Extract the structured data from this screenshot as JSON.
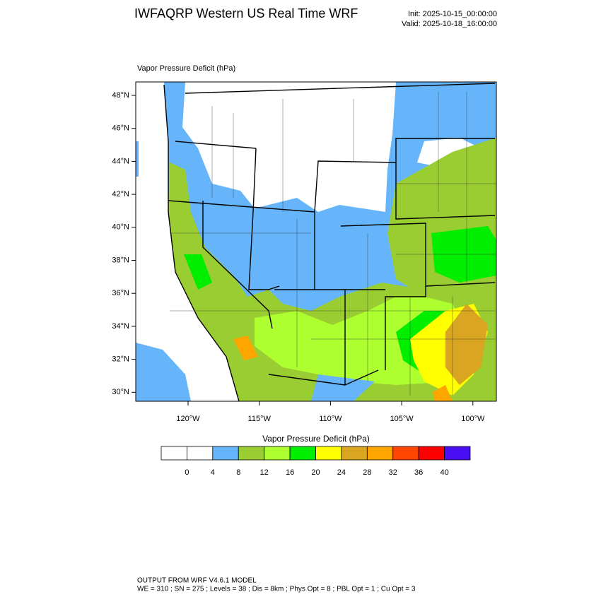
{
  "header": {
    "title": "IWFAQRP Western US Real Time WRF",
    "init": "Init: 2025-10-15_00:00:00",
    "valid": "Valid: 2025-10-18_16:00:00"
  },
  "map": {
    "field_label": "Vapor Pressure Deficit   (hPa)",
    "lat_labels": [
      "48°N",
      "46°N",
      "44°N",
      "42°N",
      "40°N",
      "38°N",
      "36°N",
      "34°N",
      "32°N",
      "30°N"
    ],
    "lon_labels": [
      "120°W",
      "115°W",
      "110°W",
      "105°W",
      "100°W"
    ]
  },
  "colorbar": {
    "title": "Vapor Pressure Deficit  (hPa)",
    "colors": [
      "#ffffff",
      "#ffffff",
      "#66b5fa",
      "#9acd32",
      "#adff2f",
      "#00ee00",
      "#ffff00",
      "#daa520",
      "#ffa500",
      "#ff4500",
      "#ff0000",
      "#4a0ef5"
    ],
    "ticks": [
      0,
      4,
      8,
      12,
      16,
      20,
      24,
      28,
      32,
      36,
      40
    ]
  },
  "footer": {
    "line1": "OUTPUT FROM WRF V4.6.1 MODEL",
    "line2": "WE = 310 ; SN = 275 ; Levels = 38 ; Dis = 8km ; Phys Opt = 8 ; PBL Opt = 1 ; Cu Opt = 3"
  }
}
